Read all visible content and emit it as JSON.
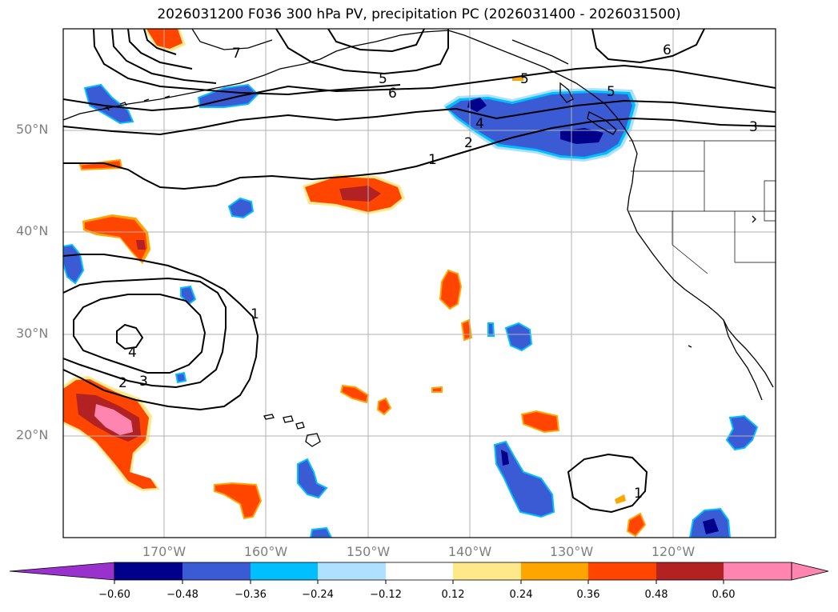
{
  "title": "2026031200 F036 300 hPa PV, precipitation PC (2026031400 - 2026031500)",
  "map": {
    "projection": "PlateCarree",
    "extent": {
      "lon_min": -180,
      "lon_max": -110,
      "lat_min": 10,
      "lat_max": 60
    },
    "gridlines": true,
    "lat_labels": [
      {
        "lat": 50,
        "label": "50°N"
      },
      {
        "lat": 40,
        "label": "40°N"
      },
      {
        "lat": 30,
        "label": "30°N"
      },
      {
        "lat": 20,
        "label": "20°N"
      }
    ],
    "lon_labels": [
      {
        "lon": -170,
        "label": "170°W"
      },
      {
        "lon": -160,
        "label": "160°W"
      },
      {
        "lon": -150,
        "label": "150°W"
      },
      {
        "lon": -140,
        "label": "140°W"
      },
      {
        "lon": -130,
        "label": "130°W"
      },
      {
        "lon": -120,
        "label": "120°W"
      }
    ]
  },
  "pv_contours": {
    "color": "#000000",
    "labels_shown": [
      "1",
      "2",
      "3",
      "4",
      "5",
      "6",
      "7"
    ]
  },
  "colorbar": {
    "orientation": "horizontal",
    "extend": "both",
    "colors": [
      "#9932cc",
      "#00008b",
      "#3b5bd5",
      "#00bfff",
      "#b0e0ff",
      "#ffffff",
      "#ffe88a",
      "#ffa500",
      "#ff4500",
      "#b22222",
      "#ff85b0",
      "#ff85b0"
    ],
    "ticks": [
      "−0.60",
      "−0.48",
      "−0.36",
      "−0.24",
      "−0.12",
      "0.12",
      "0.24",
      "0.36",
      "0.48",
      "0.60"
    ]
  }
}
